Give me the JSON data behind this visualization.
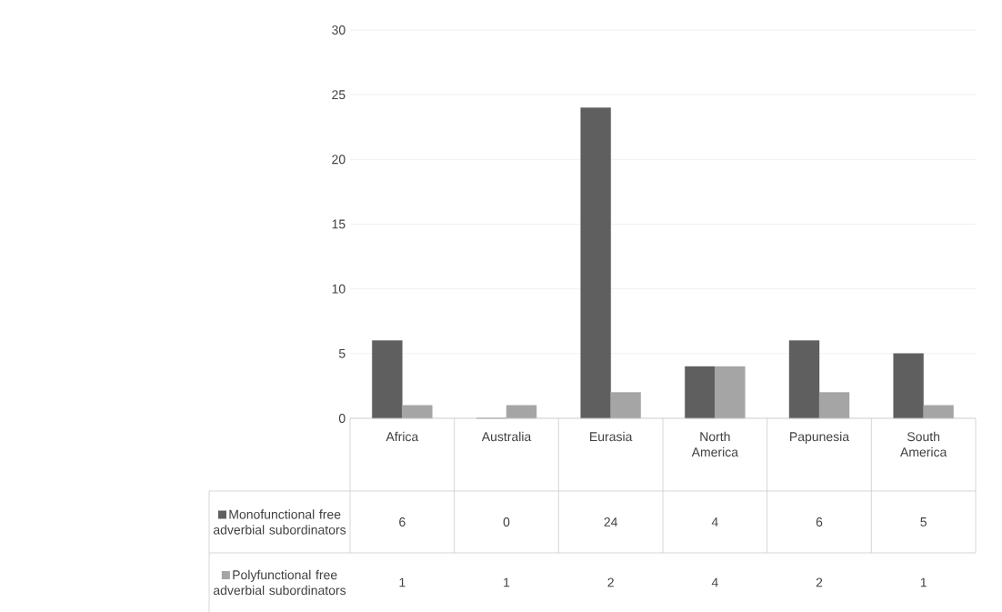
{
  "chart_data": {
    "type": "bar",
    "categories": [
      "Africa",
      "Australia",
      "Eurasia",
      "North America",
      "Papunesia",
      "South America"
    ],
    "series": [
      {
        "name": "Monofunctional free adverbial subordinators",
        "color": "#5f5f5f",
        "values": [
          6,
          0,
          24,
          4,
          6,
          5
        ]
      },
      {
        "name": "Polyfunctional free adverbial subordinators",
        "color": "#a5a5a5",
        "values": [
          1,
          1,
          2,
          4,
          2,
          1
        ]
      }
    ],
    "ylim": [
      0,
      30
    ],
    "yticks": [
      0,
      5,
      10,
      15,
      20,
      25,
      30
    ],
    "grid": "y",
    "legend": "bottom",
    "data_labels": true
  }
}
